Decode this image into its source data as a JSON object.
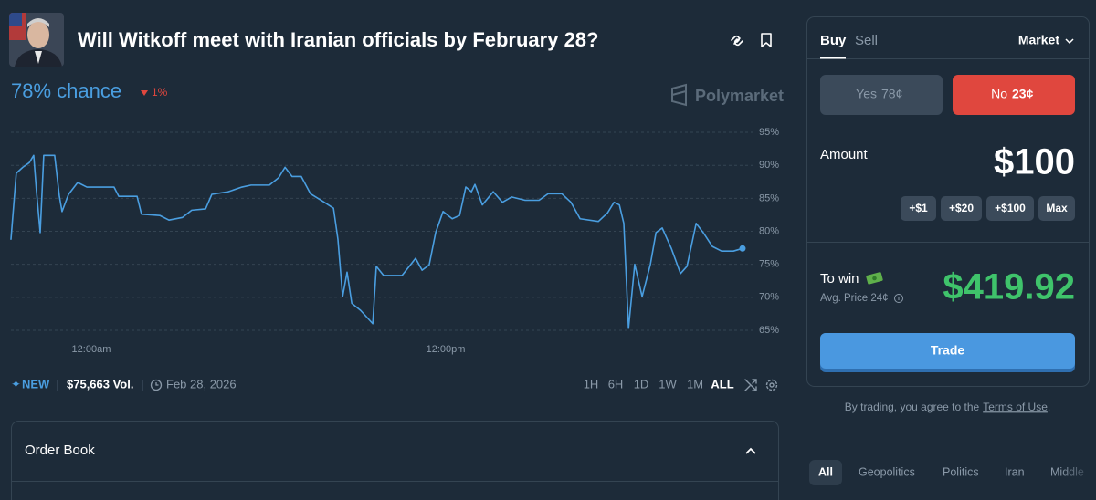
{
  "header": {
    "title": "Will Witkoff meet with Iranian officials by February 28?",
    "chance": "78% chance",
    "change": "1%",
    "brand": "Polymarket"
  },
  "chart_data": {
    "type": "line",
    "color": "#4a9ee0",
    "x": [
      -2.72,
      -2.54,
      -2.32,
      -2.1,
      -1.95,
      -1.86,
      -1.73,
      -1.61,
      -1.24,
      -1.08,
      -0.99,
      -0.77,
      -0.46,
      -0.15,
      0.31,
      0.77,
      0.93,
      1.55,
      1.7,
      2.32,
      2.63,
      3.09,
      3.4,
      3.87,
      4.08,
      4.64,
      5.1,
      5.41,
      6.03,
      6.34,
      6.56,
      6.8,
      7.11,
      7.42,
      7.89,
      8.2,
      8.35,
      8.51,
      8.66,
      8.82,
      9.12,
      9.53,
      9.65,
      9.9,
      10.52,
      10.98,
      11.2,
      11.44,
      11.66,
      11.91,
      12.22,
      12.47,
      12.68,
      12.87,
      12.99,
      13.24,
      13.61,
      13.92,
      14.23,
      14.69,
      15.16,
      15.47,
      15.93,
      16.24,
      16.55,
      17.17,
      17.48,
      17.7,
      17.88,
      18.03,
      18.19,
      18.4,
      18.65,
      18.93,
      19.12,
      19.33,
      19.64,
      19.95,
      20.17,
      20.48,
      20.72,
      21.03,
      21.34,
      21.74,
      22.05
    ],
    "values": [
      78.8,
      88.8,
      89.7,
      90.4,
      91.5,
      86.3,
      79.8,
      91.5,
      91.5,
      85.3,
      83,
      85.6,
      87.4,
      86.7,
      86.7,
      86.7,
      85.3,
      85.3,
      82.6,
      82.4,
      81.7,
      82.1,
      83.2,
      83.4,
      85.6,
      86,
      86.7,
      87,
      87,
      88.1,
      89.7,
      88.3,
      88.3,
      85.7,
      84.4,
      83.5,
      78.8,
      70.1,
      73.8,
      69.1,
      68,
      66,
      74.7,
      73.3,
      73.3,
      75.9,
      74.1,
      74.9,
      79.8,
      83,
      81.9,
      82.4,
      86.7,
      86,
      87.1,
      84,
      86,
      84.4,
      85.2,
      84.7,
      84.7,
      85.7,
      85.7,
      84.4,
      81.9,
      81.5,
      82.8,
      84.4,
      84,
      81.2,
      65.3,
      75,
      70.1,
      75,
      79.8,
      80.5,
      77.4,
      73.6,
      74.7,
      81.2,
      79.8,
      77.7,
      77,
      77,
      77.4
    ],
    "xlim": [
      -2.72,
      22.05
    ],
    "xticks": [
      {
        "value": 0,
        "label": "12:00am"
      },
      {
        "value": 12,
        "label": "12:00pm"
      }
    ],
    "ylim": [
      64,
      96
    ],
    "yticks": [
      {
        "value": 65,
        "label": "65%"
      },
      {
        "value": 70,
        "label": "70%"
      },
      {
        "value": 75,
        "label": "75%"
      },
      {
        "value": 80,
        "label": "80%"
      },
      {
        "value": 85,
        "label": "85%"
      },
      {
        "value": 90,
        "label": "90%"
      },
      {
        "value": 95,
        "label": "95%"
      }
    ],
    "grid": true
  },
  "footer": {
    "new": "NEW",
    "volume": "$75,663 Vol.",
    "date": "Feb 28, 2026",
    "ranges": [
      "1H",
      "6H",
      "1D",
      "1W",
      "1M",
      "ALL"
    ]
  },
  "order_book": "Order Book",
  "trade_panel": {
    "tabs": [
      "Buy",
      "Sell"
    ],
    "order_type": "Market",
    "yes_label": "Yes",
    "yes_price": "78¢",
    "no_label": "No",
    "no_price": "23¢",
    "amount_label": "Amount",
    "amount": "$100",
    "increments": [
      "+$1",
      "+$20",
      "+$100",
      "Max"
    ],
    "to_win_label": "To win",
    "avg_price": "Avg. Price 24¢",
    "to_win": "$419.92",
    "button": "Trade",
    "disclaimer": "By trading, you agree to the",
    "terms": "Terms of Use",
    "period": "."
  },
  "tags": [
    "All",
    "Geopolitics",
    "Politics",
    "Iran",
    "Middle"
  ]
}
